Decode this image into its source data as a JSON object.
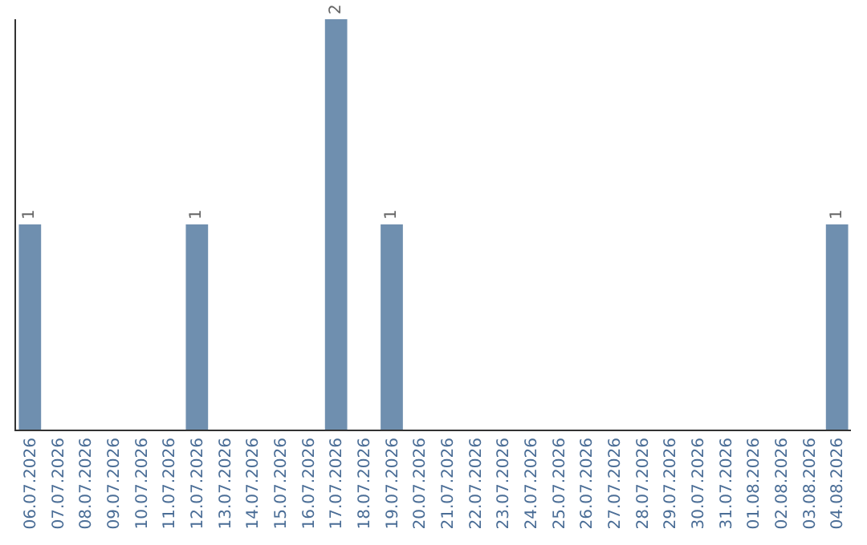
{
  "chart_data": {
    "type": "bar",
    "categories": [
      "06.07.2026",
      "07.07.2026",
      "08.07.2026",
      "09.07.2026",
      "10.07.2026",
      "11.07.2026",
      "12.07.2026",
      "13.07.2026",
      "14.07.2026",
      "15.07.2026",
      "16.07.2026",
      "17.07.2026",
      "18.07.2026",
      "19.07.2026",
      "20.07.2026",
      "21.07.2026",
      "22.07.2026",
      "23.07.2026",
      "24.07.2026",
      "25.07.2026",
      "26.07.2026",
      "27.07.2026",
      "28.07.2026",
      "29.07.2026",
      "30.07.2026",
      "31.07.2026",
      "01.08.2026",
      "02.08.2026",
      "03.08.2026",
      "04.08.2026"
    ],
    "values": [
      1,
      0,
      0,
      0,
      0,
      0,
      1,
      0,
      0,
      0,
      0,
      2,
      0,
      1,
      0,
      0,
      0,
      0,
      0,
      0,
      0,
      0,
      0,
      0,
      0,
      0,
      0,
      0,
      0,
      1
    ],
    "value_labels": [
      "1",
      null,
      null,
      null,
      null,
      null,
      "1",
      null,
      null,
      null,
      null,
      "2",
      null,
      "1",
      null,
      null,
      null,
      null,
      null,
      null,
      null,
      null,
      null,
      null,
      null,
      null,
      null,
      null,
      null,
      "1"
    ],
    "color": "#6f8faf",
    "legend": false
  }
}
